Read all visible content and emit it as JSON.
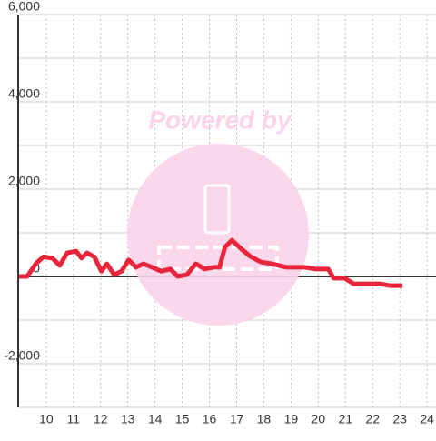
{
  "chart_data": {
    "type": "line",
    "watermark": "Powered by",
    "x": [
      9.0,
      9.3,
      9.63,
      9.9,
      10.23,
      10.5,
      10.77,
      11.1,
      11.3,
      11.5,
      11.77,
      12.03,
      12.23,
      12.5,
      12.77,
      13.03,
      13.3,
      13.57,
      13.9,
      14.23,
      14.57,
      14.83,
      15.17,
      15.5,
      15.83,
      16.17,
      16.37,
      16.57,
      16.83,
      17.1,
      17.5,
      17.9,
      18.3,
      18.83,
      19.5,
      19.9,
      20.37,
      20.57,
      20.97,
      21.3,
      22.3,
      22.63,
      23.1
    ],
    "series": [
      {
        "color": "#e8253a",
        "values": [
          0,
          0,
          300,
          450,
          420,
          250,
          540,
          580,
          420,
          540,
          450,
          120,
          290,
          40,
          120,
          380,
          210,
          290,
          210,
          120,
          170,
          0,
          40,
          290,
          170,
          210,
          210,
          670,
          830,
          670,
          460,
          330,
          290,
          210,
          210,
          170,
          170,
          -40,
          -40,
          -170,
          -170,
          -210,
          -210
        ]
      }
    ],
    "xlim": [
      8.97,
      24.33
    ],
    "xticks": [
      10,
      11,
      12,
      13,
      14,
      15,
      16,
      17,
      18,
      19,
      20,
      21,
      22,
      23,
      24
    ],
    "ylim": [
      -3000,
      6000
    ],
    "yticks": [
      {
        "value": -2000,
        "label": "-2,000"
      },
      0,
      {
        "value": 2000,
        "label": "2,000"
      },
      {
        "value": 4000,
        "label": "4,000"
      },
      {
        "value": 6000,
        "label": "6,000"
      }
    ],
    "minor_yticks": [
      -3000,
      -1000,
      1000,
      3000,
      5000
    ],
    "grid": true
  }
}
